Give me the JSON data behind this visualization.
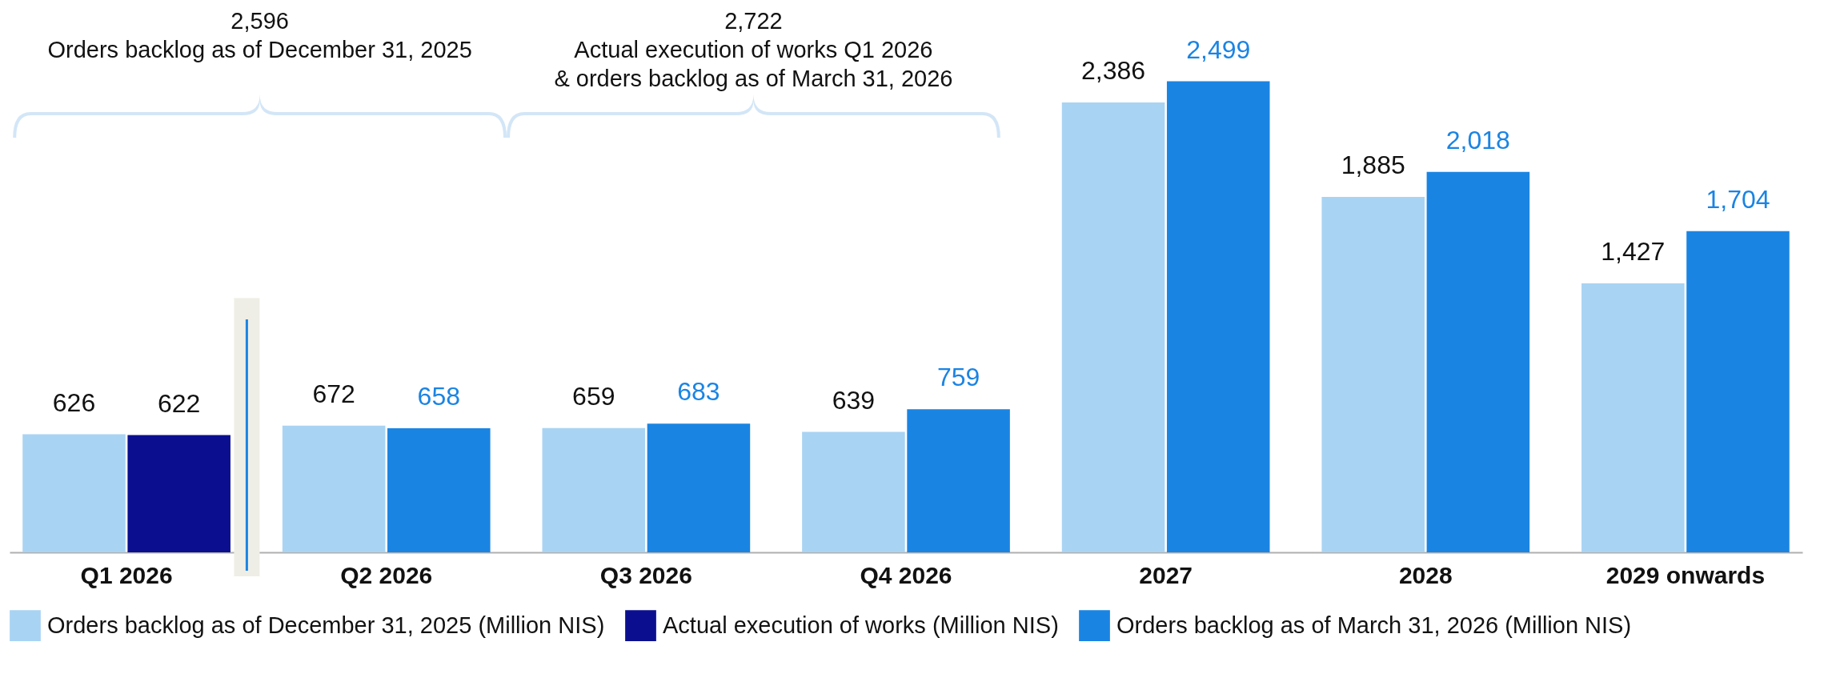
{
  "chart_data": {
    "type": "bar",
    "categories": [
      "Q1 2026",
      "Q2 2026",
      "Q3 2026",
      "Q4 2026",
      "2027",
      "2028",
      "2029 onwards"
    ],
    "series": [
      {
        "name": "Orders backlog as of December 31, 2025 (Million NIS)",
        "color": "#a9d3f3",
        "values": [
          626,
          672,
          659,
          639,
          2386,
          1885,
          1427
        ],
        "value_labels": [
          "626",
          "672",
          "659",
          "639",
          "2,386",
          "1,885",
          "1,427"
        ]
      },
      {
        "name": "Actual execution of works (Million NIS)",
        "color": "#0b0f8f",
        "values": [
          622,
          null,
          null,
          null,
          null,
          null,
          null
        ],
        "value_labels": [
          "622",
          null,
          null,
          null,
          null,
          null,
          null
        ]
      },
      {
        "name": "Orders backlog as of March 31, 2026 (Million NIS)",
        "color": "#1a84e3",
        "values": [
          null,
          658,
          683,
          759,
          2499,
          2018,
          1704
        ],
        "value_labels": [
          null,
          "658",
          "683",
          "759",
          "2,499",
          "2,018",
          "1,704"
        ]
      }
    ],
    "legend": "bottom",
    "annotations": [
      "2,596\nOrders backlog as of December 31, 2025",
      "2,722\nActual execution of works Q1 2026\n& orders backlog as of March 31, 2026"
    ]
  }
}
